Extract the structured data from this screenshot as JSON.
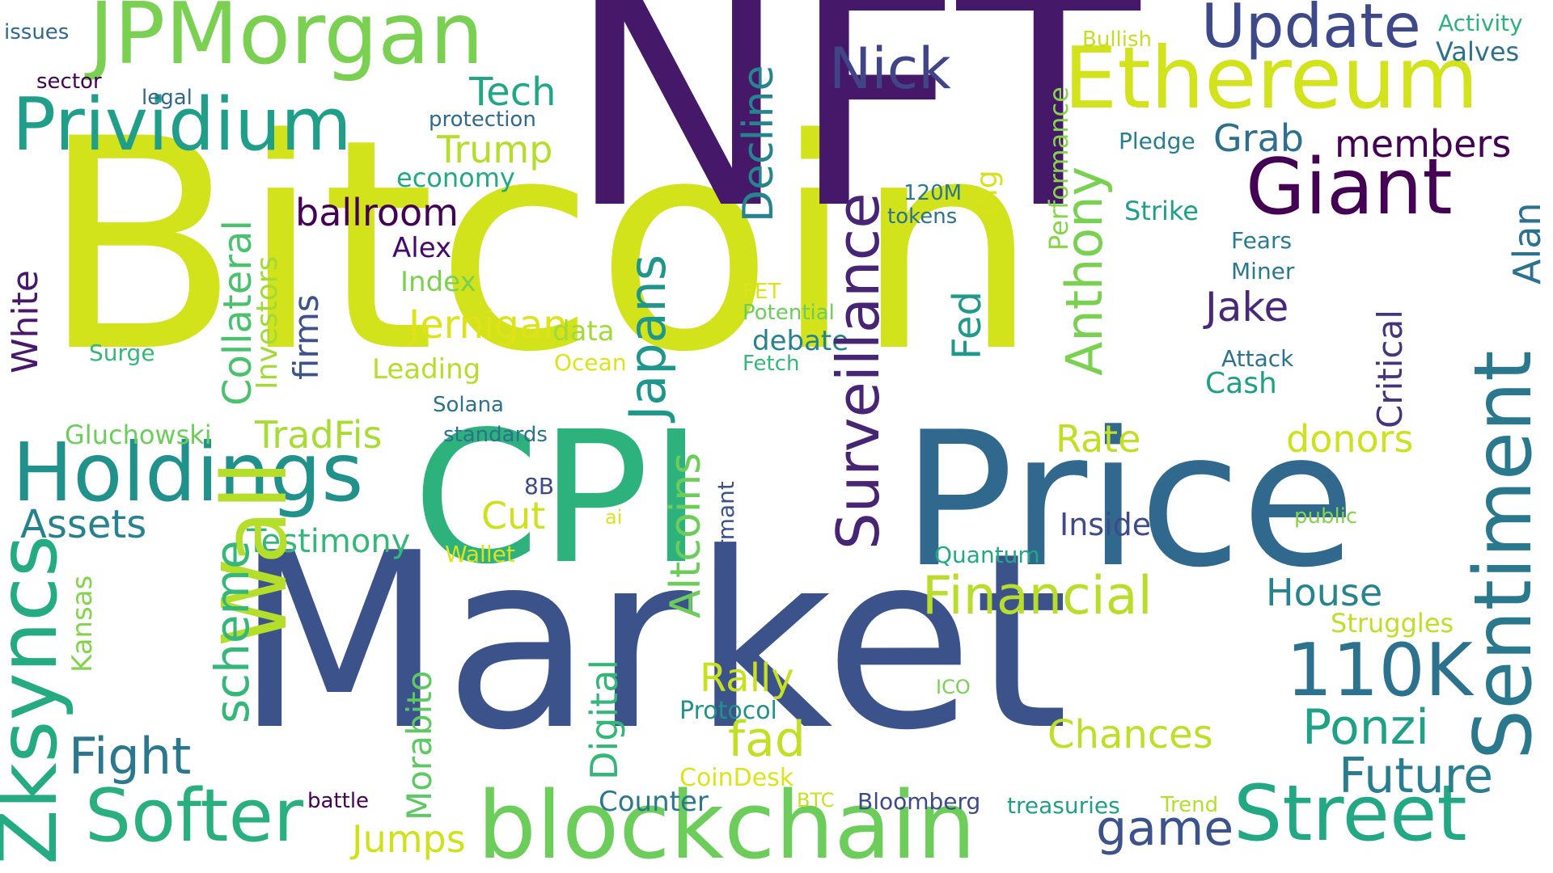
{
  "words": [
    {
      "text": "Bitcoin",
      "color": "#d2e21b"
    },
    {
      "text": "Market",
      "color": "#3b528b"
    },
    {
      "text": "NFT",
      "color": "#46186a"
    },
    {
      "text": "Price",
      "color": "#31688e"
    },
    {
      "text": "CPI",
      "color": "#2db27d"
    },
    {
      "text": "blockchain",
      "color": "#6ccd5a"
    },
    {
      "text": "JPMorgan",
      "color": "#7ad151"
    },
    {
      "text": "Ethereum",
      "color": "#d2e21b"
    },
    {
      "text": "Holdings",
      "color": "#21918c"
    },
    {
      "text": "Prividium",
      "color": "#1f9e89"
    },
    {
      "text": "Street",
      "color": "#22a884"
    },
    {
      "text": "Giant",
      "color": "#440154"
    },
    {
      "text": "Update",
      "color": "#3e4989"
    },
    {
      "text": "Nick",
      "color": "#414487"
    },
    {
      "text": "Softer",
      "color": "#2ab07f"
    },
    {
      "text": "Wall",
      "color": "#b5de2b"
    },
    {
      "text": "Zksyncs",
      "color": "#25ab82"
    },
    {
      "text": "Sentiment",
      "color": "#2a788e"
    },
    {
      "text": "110K",
      "color": "#2c728e"
    },
    {
      "text": "Surveillance",
      "color": "#482475"
    },
    {
      "text": "Financial",
      "color": "#b8de29"
    },
    {
      "text": "Future",
      "color": "#287d8e"
    },
    {
      "text": "Ponzi",
      "color": "#1fa188"
    },
    {
      "text": "Anthony",
      "color": "#7ad151"
    },
    {
      "text": "game",
      "color": "#3b528b"
    },
    {
      "text": "scheme",
      "color": "#35b779"
    },
    {
      "text": "Japans",
      "color": "#1f968b"
    },
    {
      "text": "fad",
      "color": "#c2df23"
    },
    {
      "text": "Fight",
      "color": "#2a788e"
    },
    {
      "text": "Decline",
      "color": "#25848e"
    },
    {
      "text": "Altcoins",
      "color": "#6ccd5a"
    },
    {
      "text": "Chances",
      "color": "#bddf26"
    },
    {
      "text": "Assets",
      "color": "#26828e"
    },
    {
      "text": "Collateral",
      "color": "#4ac16d"
    },
    {
      "text": "Digital",
      "color": "#34b679"
    },
    {
      "text": "Rally",
      "color": "#c8e020"
    },
    {
      "text": "Tech",
      "color": "#22a785"
    },
    {
      "text": "ballroom",
      "color": "#440154"
    },
    {
      "text": "Trump",
      "color": "#b5de2b"
    },
    {
      "text": "Jake",
      "color": "#482878"
    },
    {
      "text": "members",
      "color": "#440154"
    },
    {
      "text": "Grab",
      "color": "#2d708e"
    },
    {
      "text": "TradFis",
      "color": "#a8db34"
    },
    {
      "text": "Morabito",
      "color": "#5ec962"
    },
    {
      "text": "House",
      "color": "#25848e"
    },
    {
      "text": "Rate",
      "color": "#c2df23"
    },
    {
      "text": "donors",
      "color": "#cde11d"
    },
    {
      "text": "Cut",
      "color": "#cde11d"
    },
    {
      "text": "Critical",
      "color": "#46337e"
    },
    {
      "text": "White",
      "color": "#48186a"
    },
    {
      "text": "Fed",
      "color": "#1f9a8a"
    },
    {
      "text": "Jumps",
      "color": "#d0e11c"
    },
    {
      "text": "Alan",
      "color": "#2c728e"
    },
    {
      "text": "Big",
      "color": "#dde318"
    },
    {
      "text": "Jernigan",
      "color": "#35b779"
    },
    {
      "text": "Testimony",
      "color": "#d8e219"
    },
    {
      "text": "Investors",
      "color": "#a2da37"
    },
    {
      "text": "firms",
      "color": "#3b528b"
    },
    {
      "text": "Performance",
      "color": "#86d549"
    },
    {
      "text": "Kansas",
      "color": "#84d44b"
    },
    {
      "text": "Inside",
      "color": "#3e4a89"
    },
    {
      "text": "Struggles",
      "color": "#bddf26"
    },
    {
      "text": "Counter",
      "color": "#2a788e"
    },
    {
      "text": "economy",
      "color": "#22a884"
    },
    {
      "text": "Strike",
      "color": "#1f9e89"
    },
    {
      "text": "Index",
      "color": "#7ad151"
    },
    {
      "text": "Leading",
      "color": "#b5de2b"
    },
    {
      "text": "Cash",
      "color": "#1f9e89"
    },
    {
      "text": "Alex",
      "color": "#46086a"
    },
    {
      "text": "Protocol",
      "color": "#21918c"
    },
    {
      "text": "Gluchowski",
      "color": "#6ccd5a"
    },
    {
      "text": "debate",
      "color": "#26828e"
    },
    {
      "text": "data",
      "color": "#a2da37"
    },
    {
      "text": "Bloomberg",
      "color": "#3e4989"
    },
    {
      "text": "treasuries",
      "color": "#1f9e89"
    },
    {
      "text": "CoinDesk",
      "color": "#dde318"
    },
    {
      "text": "Attack",
      "color": "#2c728e"
    },
    {
      "text": "Dormant",
      "color": "#3b528b"
    },
    {
      "text": "Fears",
      "color": "#287c8e"
    },
    {
      "text": "Miner",
      "color": "#2a788e"
    },
    {
      "text": "Quantum",
      "color": "#22a884"
    },
    {
      "text": "standards",
      "color": "#2c728e"
    },
    {
      "text": "Valves",
      "color": "#2d708e"
    },
    {
      "text": "Solana",
      "color": "#2c728e"
    },
    {
      "text": "Pledge",
      "color": "#287d8e"
    },
    {
      "text": "Activity",
      "color": "#2db27d"
    },
    {
      "text": "8B",
      "color": "#3e4989"
    },
    {
      "text": "battle",
      "color": "#440154"
    },
    {
      "text": "Wallet",
      "color": "#dde318"
    },
    {
      "text": "Bullish",
      "color": "#c2df23"
    },
    {
      "text": "120M",
      "color": "#2a788e"
    },
    {
      "text": "tokens",
      "color": "#2c728e"
    },
    {
      "text": "protection",
      "color": "#31688e"
    },
    {
      "text": "Surge",
      "color": "#35b779"
    },
    {
      "text": "Trend",
      "color": "#b5de2b"
    },
    {
      "text": "sector",
      "color": "#440154"
    },
    {
      "text": "legal",
      "color": "#31688e"
    },
    {
      "text": "Ocean",
      "color": "#dde318"
    },
    {
      "text": "Fetch",
      "color": "#35b779"
    },
    {
      "text": "Potential",
      "color": "#6ccd5a"
    },
    {
      "text": "FET",
      "color": "#dde318"
    },
    {
      "text": "public",
      "color": "#84d44b"
    },
    {
      "text": "BTC",
      "color": "#c8e020"
    },
    {
      "text": "ICO",
      "color": "#7ad151"
    },
    {
      "text": "ai",
      "color": "#dde318"
    },
    {
      "text": "issues",
      "color": "#31688e"
    }
  ]
}
